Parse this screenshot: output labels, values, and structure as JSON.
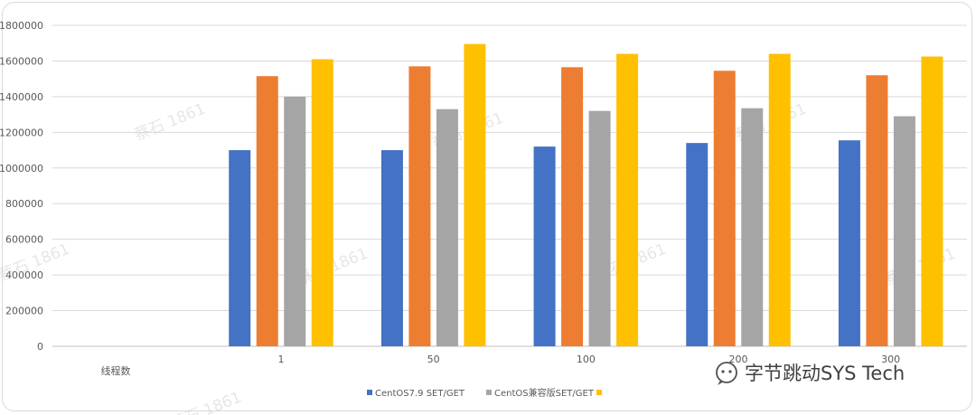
{
  "chart_data": {
    "type": "bar",
    "title": "",
    "xlabel": "线程数",
    "ylabel": "",
    "categories": [
      "",
      "1",
      "50",
      "100",
      "200",
      "300"
    ],
    "ylim": [
      0,
      1800000
    ],
    "yticks": [
      0,
      200000,
      400000,
      600000,
      800000,
      1000000,
      1200000,
      1400000,
      1600000,
      1800000
    ],
    "grid": true,
    "legend_position": "bottom",
    "series": [
      {
        "name": "CentOS7.9 SET/GET",
        "color": "#4472c4",
        "values": [
          null,
          1100000,
          1100000,
          1120000,
          1140000,
          1155000
        ]
      },
      {
        "name": "",
        "color": "#ed7d31",
        "values": [
          null,
          1515000,
          1570000,
          1565000,
          1545000,
          1520000
        ]
      },
      {
        "name": "CentOS兼容版SET/GET",
        "color": "#a5a5a5",
        "values": [
          null,
          1400000,
          1330000,
          1320000,
          1335000,
          1290000
        ]
      },
      {
        "name": "",
        "color": "#ffc000",
        "values": [
          null,
          1610000,
          1695000,
          1640000,
          1640000,
          1625000
        ]
      }
    ]
  },
  "watermark": "蔡石 1861",
  "brand": {
    "icon": "wechat-icon",
    "text": "字节跳动SYS Tech"
  }
}
